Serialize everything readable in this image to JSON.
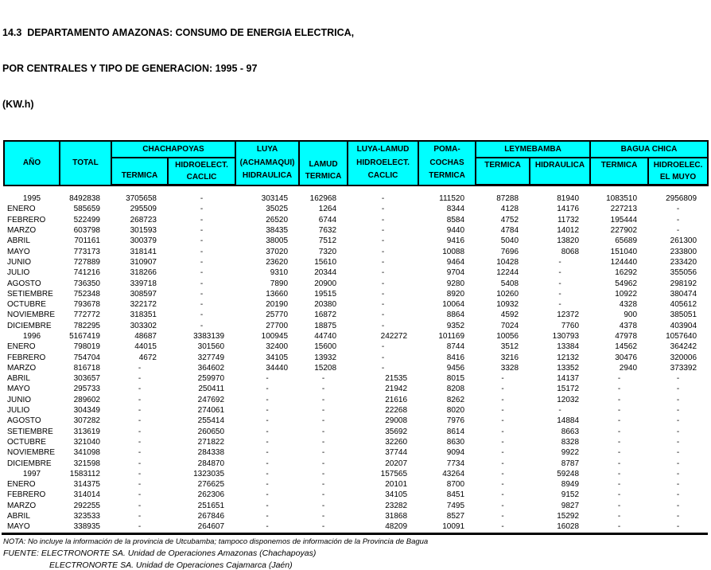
{
  "title": {
    "line1": "14.3  DEPARTAMENTO AMAZONAS: CONSUMO DE ENERGIA ELECTRICA,",
    "line2": "POR CENTRALES Y TIPO DE GENERACION: 1995 - 97",
    "line3": "(KW.h)"
  },
  "colors": {
    "header_bg": "#00ffff",
    "border": "#000000"
  },
  "table": {
    "header": {
      "ano": "AÑO",
      "total": "TOTAL",
      "chachapoyas_group": "CHACHAPOYAS",
      "chach_termica": "TERMICA",
      "chach_hidro_l1": "HIDROELECT.",
      "chach_hidro_l2": "CACLIC",
      "luya_l1": "LUYA",
      "luya_l2": "(ACHAMAQUI)",
      "luya_l3": "HIDRAULICA",
      "lamud_l1": "LAMUD",
      "lamud_l2": "TERMICA",
      "luya_lamud_l1": "LUYA-LAMUD",
      "luya_lamud_l2": "HIDROELECT.",
      "luya_lamud_l3": "CACLIC",
      "poma_l1": "POMA-",
      "poma_l2": "COCHAS",
      "poma_l3": "TERMICA",
      "leymebamba_group": "LEYMEBAMBA",
      "ley_termica": "TERMICA",
      "ley_hidraulica": "HIDRAULICA",
      "bagua_group": "BAGUA CHICA",
      "bagua_termica": "TERMICA",
      "bagua_hidro_l1": "HIDROELEC.",
      "bagua_hidro_l2": "EL MUYO"
    },
    "rows": [
      {
        "label": "1995",
        "year": true,
        "values": [
          "8492838",
          "3705658",
          "-",
          "303145",
          "162968",
          "-",
          "111520",
          "87288",
          "81940",
          "1083510",
          "2956809"
        ]
      },
      {
        "label": "ENERO",
        "year": false,
        "values": [
          "585659",
          "295509",
          "-",
          "35025",
          "1264",
          "-",
          "8344",
          "4128",
          "14176",
          "227213",
          "-"
        ]
      },
      {
        "label": "FEBRERO",
        "year": false,
        "values": [
          "522499",
          "268723",
          "-",
          "26520",
          "6744",
          "-",
          "8584",
          "4752",
          "11732",
          "195444",
          "-"
        ]
      },
      {
        "label": "MARZO",
        "year": false,
        "values": [
          "603798",
          "301593",
          "-",
          "38435",
          "7632",
          "-",
          "9440",
          "4784",
          "14012",
          "227902",
          "-"
        ]
      },
      {
        "label": "ABRIL",
        "year": false,
        "values": [
          "701161",
          "300379",
          "-",
          "38005",
          "7512",
          "-",
          "9416",
          "5040",
          "13820",
          "65689",
          "261300"
        ]
      },
      {
        "label": "MAYO",
        "year": false,
        "values": [
          "773173",
          "318141",
          "-",
          "37020",
          "7320",
          "-",
          "10088",
          "7696",
          "8068",
          "151040",
          "233800"
        ]
      },
      {
        "label": "JUNIO",
        "year": false,
        "values": [
          "727889",
          "310907",
          "-",
          "23620",
          "15610",
          "-",
          "9464",
          "10428",
          "-",
          "124440",
          "233420"
        ]
      },
      {
        "label": "JULIO",
        "year": false,
        "values": [
          "741216",
          "318266",
          "-",
          "9310",
          "20344",
          "-",
          "9704",
          "12244",
          "-",
          "16292",
          "355056"
        ]
      },
      {
        "label": "AGOSTO",
        "year": false,
        "values": [
          "736350",
          "339718",
          "-",
          "7890",
          "20900",
          "-",
          "9280",
          "5408",
          "-",
          "54962",
          "298192"
        ]
      },
      {
        "label": "SETIEMBRE",
        "year": false,
        "values": [
          "752348",
          "308597",
          "-",
          "13660",
          "19515",
          "-",
          "8920",
          "10260",
          "-",
          "10922",
          "380474"
        ]
      },
      {
        "label": "OCTUBRE",
        "year": false,
        "values": [
          "793678",
          "322172",
          "-",
          "20190",
          "20380",
          "-",
          "10064",
          "10932",
          "-",
          "4328",
          "405612"
        ]
      },
      {
        "label": "NOVIEMBRE",
        "year": false,
        "values": [
          "772772",
          "318351",
          "-",
          "25770",
          "16872",
          "-",
          "8864",
          "4592",
          "12372",
          "900",
          "385051"
        ]
      },
      {
        "label": "DICIEMBRE",
        "year": false,
        "values": [
          "782295",
          "303302",
          "-",
          "27700",
          "18875",
          "-",
          "9352",
          "7024",
          "7760",
          "4378",
          "403904"
        ]
      },
      {
        "label": "1996",
        "year": true,
        "values": [
          "5167419",
          "48687",
          "3383139",
          "100945",
          "44740",
          "242272",
          "101169",
          "10056",
          "130793",
          "47978",
          "1057640"
        ]
      },
      {
        "label": "ENERO",
        "year": false,
        "values": [
          "798019",
          "44015",
          "301560",
          "32400",
          "15600",
          "-",
          "8744",
          "3512",
          "13384",
          "14562",
          "364242"
        ]
      },
      {
        "label": "FEBRERO",
        "year": false,
        "values": [
          "754704",
          "4672",
          "327749",
          "34105",
          "13932",
          "-",
          "8416",
          "3216",
          "12132",
          "30476",
          "320006"
        ]
      },
      {
        "label": "MARZO",
        "year": false,
        "values": [
          "816718",
          "-",
          "364602",
          "34440",
          "15208",
          "-",
          "9456",
          "3328",
          "13352",
          "2940",
          "373392"
        ]
      },
      {
        "label": "ABRIL",
        "year": false,
        "values": [
          "303657",
          "-",
          "259970",
          "-",
          "-",
          "21535",
          "8015",
          "-",
          "14137",
          "-",
          "-"
        ]
      },
      {
        "label": "MAYO",
        "year": false,
        "values": [
          "295733",
          "-",
          "250411",
          "-",
          "-",
          "21942",
          "8208",
          "-",
          "15172",
          "-",
          "-"
        ]
      },
      {
        "label": "JUNIO",
        "year": false,
        "values": [
          "289602",
          "-",
          "247692",
          "-",
          "-",
          "21616",
          "8262",
          "-",
          "12032",
          "-",
          "-"
        ]
      },
      {
        "label": "JULIO",
        "year": false,
        "values": [
          "304349",
          "-",
          "274061",
          "-",
          "-",
          "22268",
          "8020",
          "-",
          "-",
          "-",
          "-"
        ]
      },
      {
        "label": "AGOSTO",
        "year": false,
        "values": [
          "307282",
          "-",
          "255414",
          "-",
          "-",
          "29008",
          "7976",
          "-",
          "14884",
          "-",
          "-"
        ]
      },
      {
        "label": "SETIEMBRE",
        "year": false,
        "values": [
          "313619",
          "-",
          "260650",
          "-",
          "-",
          "35692",
          "8614",
          "-",
          "8663",
          "-",
          "-"
        ]
      },
      {
        "label": "OCTUBRE",
        "year": false,
        "values": [
          "321040",
          "-",
          "271822",
          "-",
          "-",
          "32260",
          "8630",
          "-",
          "8328",
          "-",
          "-"
        ]
      },
      {
        "label": "NOVIEMBRE",
        "year": false,
        "values": [
          "341098",
          "-",
          "284338",
          "-",
          "-",
          "37744",
          "9094",
          "-",
          "9922",
          "-",
          "-"
        ]
      },
      {
        "label": "DICIEMBRE",
        "year": false,
        "values": [
          "321598",
          "-",
          "284870",
          "-",
          "-",
          "20207",
          "7734",
          "-",
          "8787",
          "-",
          "-"
        ]
      },
      {
        "label": "1997",
        "year": true,
        "values": [
          "1583112",
          "-",
          "1323035",
          "-",
          "-",
          "157565",
          "43264",
          "-",
          "59248",
          "-",
          "-"
        ]
      },
      {
        "label": "ENERO",
        "year": false,
        "values": [
          "314375",
          "-",
          "276625",
          "-",
          "-",
          "20101",
          "8700",
          "-",
          "8949",
          "-",
          "-"
        ]
      },
      {
        "label": "FEBRERO",
        "year": false,
        "values": [
          "314014",
          "-",
          "262306",
          "-",
          "-",
          "34105",
          "8451",
          "-",
          "9152",
          "-",
          "-"
        ]
      },
      {
        "label": "MARZO",
        "year": false,
        "values": [
          "292255",
          "-",
          "251651",
          "-",
          "-",
          "23282",
          "7495",
          "-",
          "9827",
          "-",
          "-"
        ]
      },
      {
        "label": "ABRIL",
        "year": false,
        "values": [
          "323533",
          "-",
          "267846",
          "-",
          "-",
          "31868",
          "8527",
          "-",
          "15292",
          "-",
          "-"
        ]
      },
      {
        "label": "MAYO",
        "year": false,
        "values": [
          "338935",
          "-",
          "264607",
          "-",
          "-",
          "48209",
          "10091",
          "-",
          "16028",
          "-",
          "-"
        ]
      }
    ]
  },
  "footer": {
    "nota": "NOTA: No incluye la información de la provincia de Utcubamba; tampoco disponemos de información de la Provincia de Bagua",
    "fuente1": "FUENTE: ELECTRONORTE SA. Unidad de Operaciones Amazonas (Chachapoyas)",
    "fuente2": "ELECTRONORTE SA. Unidad de Operaciones Cajamarca (Jaén)"
  }
}
